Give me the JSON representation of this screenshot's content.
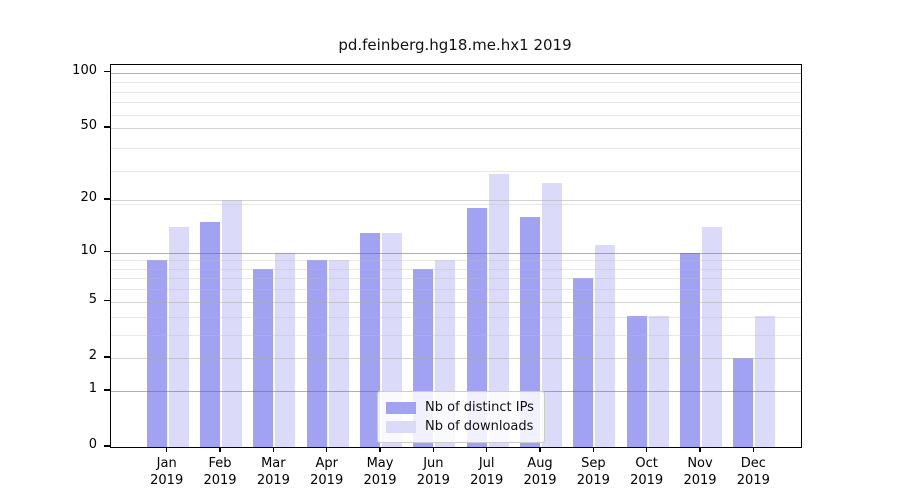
{
  "title": "pd.feinberg.hg18.me.hx1 2019",
  "chart_data": {
    "type": "bar",
    "scale": "log1p",
    "title": "pd.feinberg.hg18.me.hx1 2019",
    "categories": [
      "Jan",
      "Feb",
      "Mar",
      "Apr",
      "May",
      "Jun",
      "Jul",
      "Aug",
      "Sep",
      "Oct",
      "Nov",
      "Dec"
    ],
    "year": "2019",
    "series": [
      {
        "name": "Nb of distinct IPs",
        "color": "#a2a2f2",
        "values": [
          9,
          15,
          8,
          9,
          13,
          8,
          18,
          16,
          7,
          4,
          10,
          2
        ]
      },
      {
        "name": "Nb of downloads",
        "color": "#dbdbf9",
        "values": [
          14,
          20,
          10,
          9,
          13,
          9,
          28,
          25,
          11,
          4,
          14,
          4
        ]
      }
    ],
    "yticks": [
      {
        "label": "100",
        "value": 100
      },
      {
        "label": "50",
        "value": 50
      },
      {
        "label": "20",
        "value": 20
      },
      {
        "label": "10",
        "value": 10
      },
      {
        "label": "5",
        "value": 5
      },
      {
        "label": "2",
        "value": 2
      },
      {
        "label": "1",
        "value": 1
      },
      {
        "label": "0",
        "value": 0
      }
    ],
    "minor_gridlines": [
      3,
      4,
      6,
      7,
      8,
      9,
      19,
      29,
      39,
      59,
      69,
      79,
      89
    ],
    "ylim": [
      0,
      110
    ],
    "grid": true,
    "legend_position": "lower center"
  }
}
